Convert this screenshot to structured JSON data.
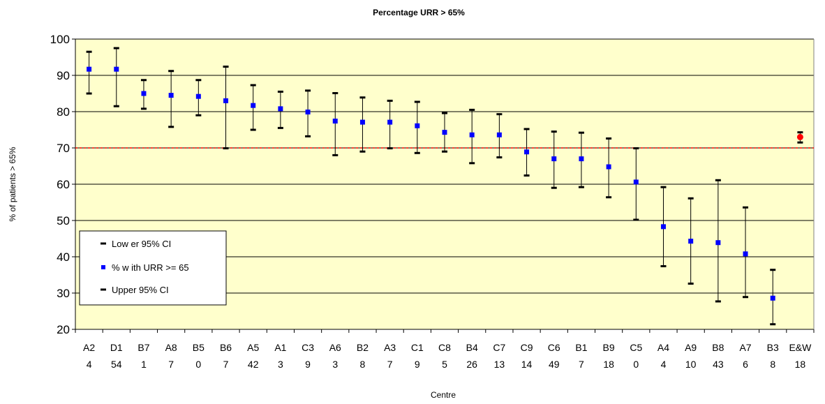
{
  "chart_data": {
    "type": "scatter",
    "title": "Percentage URR > 65%",
    "xlabel": "Centre",
    "ylabel": "% of patients > 65%",
    "ylim": [
      20,
      100
    ],
    "yticks": [
      20,
      30,
      40,
      50,
      60,
      70,
      80,
      90,
      100
    ],
    "grid": true,
    "reference_line": 70,
    "colors": {
      "plot_background": "#ffffcc",
      "point": "#0000ff",
      "highlight_point": "#ff0000",
      "reference_line": "#ff0000",
      "error_bar": "#000000"
    },
    "categories": [
      {
        "name": "A2",
        "count": "4",
        "value": 91.7,
        "lower": 85.0,
        "upper": 96.5
      },
      {
        "name": "D1",
        "count": "54",
        "value": 91.7,
        "lower": 81.5,
        "upper": 97.5
      },
      {
        "name": "B7",
        "count": "1",
        "value": 85.0,
        "lower": 80.8,
        "upper": 88.7
      },
      {
        "name": "A8",
        "count": "7",
        "value": 84.5,
        "lower": 75.8,
        "upper": 91.2
      },
      {
        "name": "B5",
        "count": "0",
        "value": 84.2,
        "lower": 79.0,
        "upper": 88.7
      },
      {
        "name": "B6",
        "count": "7",
        "value": 83.0,
        "lower": 69.9,
        "upper": 92.4
      },
      {
        "name": "A5",
        "count": "42",
        "value": 81.7,
        "lower": 75.0,
        "upper": 87.3
      },
      {
        "name": "A1",
        "count": "3",
        "value": 80.8,
        "lower": 75.5,
        "upper": 85.5
      },
      {
        "name": "C3",
        "count": "9",
        "value": 79.9,
        "lower": 73.2,
        "upper": 85.8
      },
      {
        "name": "A6",
        "count": "3",
        "value": 77.4,
        "lower": 68.0,
        "upper": 85.1
      },
      {
        "name": "B2",
        "count": "8",
        "value": 77.1,
        "lower": 69.0,
        "upper": 83.9
      },
      {
        "name": "A3",
        "count": "7",
        "value": 77.1,
        "lower": 69.9,
        "upper": 83.0
      },
      {
        "name": "C1",
        "count": "9",
        "value": 76.1,
        "lower": 68.6,
        "upper": 82.7
      },
      {
        "name": "C8",
        "count": "5",
        "value": 74.3,
        "lower": 69.0,
        "upper": 79.6
      },
      {
        "name": "B4",
        "count": "26",
        "value": 73.6,
        "lower": 65.8,
        "upper": 80.5
      },
      {
        "name": "C7",
        "count": "13",
        "value": 73.6,
        "lower": 67.4,
        "upper": 79.3
      },
      {
        "name": "C9",
        "count": "14",
        "value": 68.9,
        "lower": 62.4,
        "upper": 75.2
      },
      {
        "name": "C6",
        "count": "49",
        "value": 67.0,
        "lower": 59.0,
        "upper": 74.5
      },
      {
        "name": "B1",
        "count": "7",
        "value": 67.0,
        "lower": 59.2,
        "upper": 74.2
      },
      {
        "name": "B9",
        "count": "18",
        "value": 64.8,
        "lower": 56.4,
        "upper": 72.6
      },
      {
        "name": "C5",
        "count": "0",
        "value": 60.6,
        "lower": 50.2,
        "upper": 69.9
      },
      {
        "name": "A4",
        "count": "4",
        "value": 48.3,
        "lower": 37.4,
        "upper": 59.2
      },
      {
        "name": "A9",
        "count": "10",
        "value": 44.3,
        "lower": 32.6,
        "upper": 56.1
      },
      {
        "name": "B8",
        "count": "43",
        "value": 43.9,
        "lower": 27.7,
        "upper": 61.1
      },
      {
        "name": "A7",
        "count": "6",
        "value": 40.8,
        "lower": 28.9,
        "upper": 53.6
      },
      {
        "name": "B3",
        "count": "8",
        "value": 28.6,
        "lower": 21.4,
        "upper": 36.4
      },
      {
        "name": "E&W",
        "count": "18",
        "value": 73.0,
        "lower": 71.5,
        "upper": 74.3,
        "highlight": true
      }
    ],
    "legend": {
      "position": "left",
      "items": [
        {
          "label": "Low er 95% CI",
          "marker": "dash"
        },
        {
          "label": "% w ith URR >= 65",
          "marker": "square"
        },
        {
          "label": "Upper 95% CI",
          "marker": "dash"
        }
      ]
    }
  }
}
